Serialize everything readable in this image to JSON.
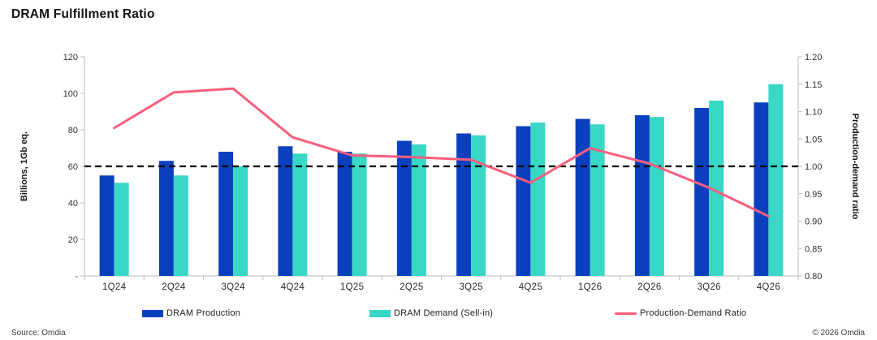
{
  "title": "DRAM Fulfillment Ratio",
  "left_axis": {
    "title": "Billions, 1Gb eq.",
    "min": 0,
    "max": 120,
    "tick_values": [
      120,
      100,
      80,
      60,
      40,
      20,
      0
    ],
    "tick_labels": [
      "120",
      "100",
      "80",
      "60",
      "40",
      "20",
      "-"
    ]
  },
  "right_axis": {
    "title": "Production-demand ratio",
    "min": 0.8,
    "max": 1.2,
    "tick_values": [
      1.2,
      1.15,
      1.1,
      1.05,
      1.0,
      0.95,
      0.9,
      0.85,
      0.8
    ],
    "tick_labels": [
      "1.20",
      "1.15",
      "1.10",
      "1.05",
      "1.00",
      "0.95",
      "0.90",
      "0.85",
      "0.80"
    ]
  },
  "legend": [
    {
      "label": "DRAM Production",
      "swatch": "bar",
      "color": "#0A40BE"
    },
    {
      "label": "DRAM Demand (Sell-in)",
      "swatch": "bar",
      "color": "#38D7C6"
    },
    {
      "label": "Production-Demand Ratio",
      "swatch": "line",
      "color": "#F95E7D"
    }
  ],
  "footer": {
    "source": "Source: Omdia",
    "copyright": "© 2026 Omdia"
  },
  "colors": {
    "production": "#0A40BE",
    "demand": "#38D7C6",
    "ratio_line": "#F95E7D",
    "reference_line": "#000000",
    "axis_line": "#c6c6c6",
    "tick_text": "#333333"
  },
  "chart_data": {
    "type": "bar",
    "subtype": "grouped-bars-with-line",
    "title": "DRAM Fulfillment Ratio",
    "categories": [
      "1Q24",
      "2Q24",
      "3Q24",
      "4Q24",
      "1Q25",
      "2Q25",
      "3Q25",
      "4Q25",
      "1Q26",
      "2Q26",
      "3Q26",
      "4Q26"
    ],
    "series": [
      {
        "name": "DRAM Production",
        "type": "bar",
        "axis": "left",
        "values": [
          55,
          63,
          68,
          71,
          68,
          74,
          78,
          82,
          86,
          88,
          92,
          95
        ]
      },
      {
        "name": "DRAM Demand (Sell-in)",
        "type": "bar",
        "axis": "left",
        "values": [
          51,
          55,
          60,
          67,
          67,
          72,
          77,
          84,
          83,
          87,
          96,
          105
        ]
      },
      {
        "name": "Production-Demand Ratio",
        "type": "line",
        "axis": "right",
        "values": [
          1.07,
          1.135,
          1.142,
          1.053,
          1.02,
          1.017,
          1.012,
          0.97,
          1.033,
          1.005,
          0.961,
          0.909
        ]
      }
    ],
    "reference_line": {
      "axis": "right",
      "value": 1.0,
      "style": "dashed",
      "color": "#000000"
    },
    "left_ylabel": "Billions, 1Gb eq.",
    "right_ylabel": "Production-demand ratio",
    "left_ylim": [
      0,
      120
    ],
    "right_ylim": [
      0.8,
      1.2
    ],
    "legend_position": "bottom",
    "grid": false
  }
}
